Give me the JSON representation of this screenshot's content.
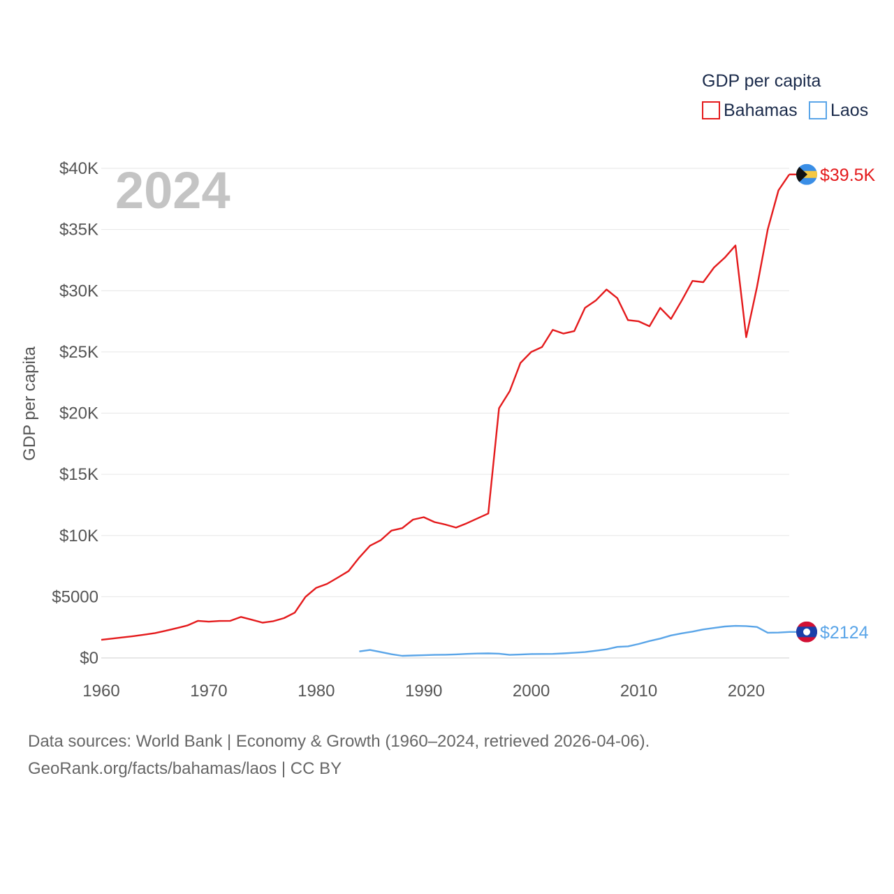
{
  "chart_data": {
    "type": "line",
    "legend_title": "GDP per capita",
    "ylabel": "GDP per capita",
    "year_label": "2024",
    "ylim": [
      0,
      40000
    ],
    "xlim": [
      1960,
      2024
    ],
    "x_ticks": [
      1960,
      1970,
      1980,
      1990,
      2000,
      2010,
      2020
    ],
    "x_tick_labels": [
      "1960",
      "1970",
      "1980",
      "1990",
      "2000",
      "2010",
      "2020"
    ],
    "y_ticks": [
      0,
      5000,
      10000,
      15000,
      20000,
      25000,
      30000,
      35000,
      40000
    ],
    "y_tick_labels": [
      "$0",
      "$5000",
      "$10K",
      "$15K",
      "$20K",
      "$25K",
      "$30K",
      "$35K",
      "$40K"
    ],
    "series": [
      {
        "name": "Bahamas",
        "color": "#e41a1c",
        "end_label": "$39.5K",
        "flag": "bahamas-flag",
        "x": [
          1960,
          1961,
          1962,
          1963,
          1964,
          1965,
          1966,
          1967,
          1968,
          1969,
          1970,
          1971,
          1972,
          1973,
          1974,
          1975,
          1976,
          1977,
          1978,
          1979,
          1980,
          1981,
          1982,
          1983,
          1984,
          1985,
          1986,
          1987,
          1988,
          1989,
          1990,
          1991,
          1992,
          1993,
          1994,
          1995,
          1996,
          1997,
          1998,
          1999,
          2000,
          2001,
          2002,
          2003,
          2004,
          2005,
          2006,
          2007,
          2008,
          2009,
          2010,
          2011,
          2012,
          2013,
          2014,
          2015,
          2016,
          2017,
          2018,
          2019,
          2020,
          2021,
          2022,
          2023,
          2024
        ],
        "values": [
          1480,
          1580,
          1680,
          1780,
          1900,
          2030,
          2220,
          2430,
          2650,
          3030,
          2960,
          3020,
          3030,
          3350,
          3120,
          2880,
          3000,
          3250,
          3700,
          4990,
          5730,
          6050,
          6560,
          7090,
          8200,
          9170,
          9620,
          10400,
          10600,
          11300,
          11500,
          11100,
          10900,
          10650,
          11000,
          11400,
          11800,
          20400,
          21800,
          24100,
          25000,
          25400,
          26800,
          26500,
          26700,
          28600,
          29200,
          30100,
          29400,
          27600,
          27500,
          27100,
          28600,
          27700,
          29200,
          30800,
          30700,
          31900,
          32700,
          33700,
          26200,
          30300,
          35000,
          38200,
          39500
        ]
      },
      {
        "name": "Laos",
        "color": "#5aa5e8",
        "end_label": "$2124",
        "flag": "laos-flag",
        "x": [
          1984,
          1985,
          1986,
          1987,
          1988,
          1989,
          1990,
          1991,
          1992,
          1993,
          1994,
          1995,
          1996,
          1997,
          1998,
          1999,
          2000,
          2001,
          2002,
          2003,
          2004,
          2005,
          2006,
          2007,
          2008,
          2009,
          2010,
          2011,
          2012,
          2013,
          2014,
          2015,
          2016,
          2017,
          2018,
          2019,
          2020,
          2021,
          2022,
          2023,
          2024
        ],
        "values": [
          530,
          650,
          480,
          300,
          170,
          200,
          220,
          250,
          260,
          290,
          330,
          360,
          370,
          350,
          250,
          280,
          320,
          325,
          330,
          370,
          420,
          480,
          590,
          700,
          900,
          950,
          1140,
          1380,
          1580,
          1840,
          2010,
          2150,
          2330,
          2450,
          2570,
          2620,
          2600,
          2530,
          2060,
          2070,
          2124
        ]
      }
    ]
  },
  "footer": {
    "line1": "Data sources: World Bank | Economy & Growth (1960–2024, retrieved 2026-04-06).",
    "line2": "GeoRank.org/facts/bahamas/laos | CC BY"
  }
}
